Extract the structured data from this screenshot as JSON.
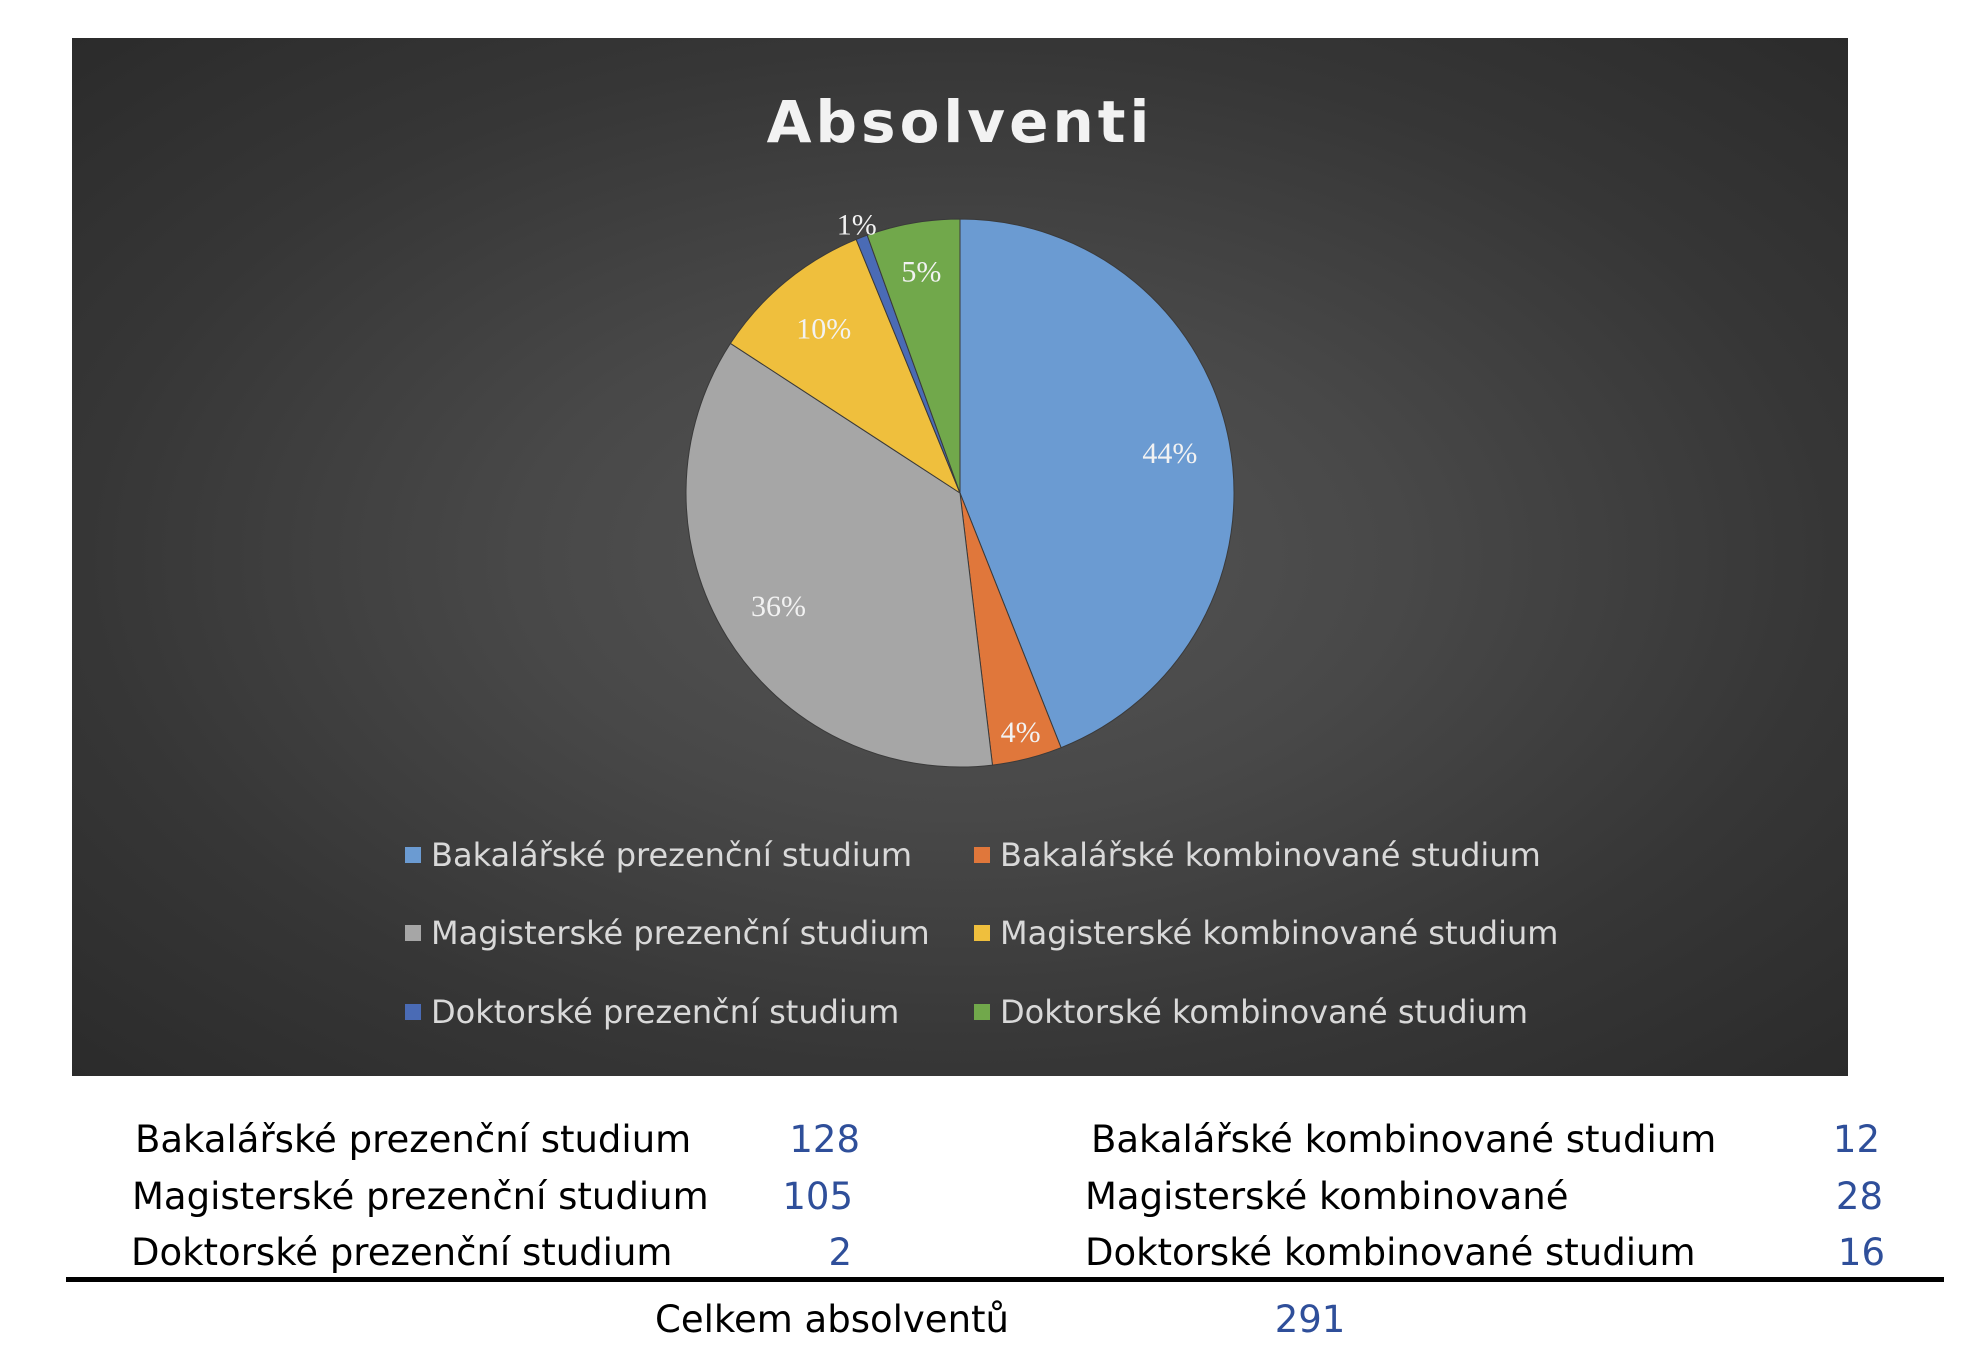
{
  "chart_data": {
    "type": "pie",
    "title": "Absolventi",
    "slices": [
      {
        "name": "Bakalářské prezenční studium",
        "value": 128,
        "label": "44%",
        "color": "#6b9bd2"
      },
      {
        "name": "Bakalářské kombinované studium",
        "value": 12,
        "label": "4%",
        "color": "#e0773b"
      },
      {
        "name": "Magisterské prezenční studium",
        "value": 105,
        "label": "36%",
        "color": "#a6a6a6"
      },
      {
        "name": "Magisterské kombinované studium",
        "value": 28,
        "label": "10%",
        "color": "#efbf3d"
      },
      {
        "name": "Doktorské prezenční studium",
        "value": 2,
        "label": "1%",
        "color": "#4a6bb5"
      },
      {
        "name": "Doktorské kombinované studium",
        "value": 16,
        "label": "5%",
        "color": "#71a84b"
      }
    ],
    "legend_position": "bottom"
  },
  "summary": {
    "rows": [
      {
        "left_label": "Bakalářské prezenční studium",
        "left_value": "128",
        "right_label": "Bakalářské kombinované studium",
        "right_value": "12"
      },
      {
        "left_label": "Magisterské prezenční studium",
        "left_value": "105",
        "right_label": "Magisterské kombinované",
        "right_value": "28"
      },
      {
        "left_label": "Doktorské prezenční studium",
        "left_value": "2",
        "right_label": "Doktorské kombinované studium",
        "right_value": "16"
      }
    ],
    "total_label": "Celkem absolventů",
    "total_value": "291"
  }
}
